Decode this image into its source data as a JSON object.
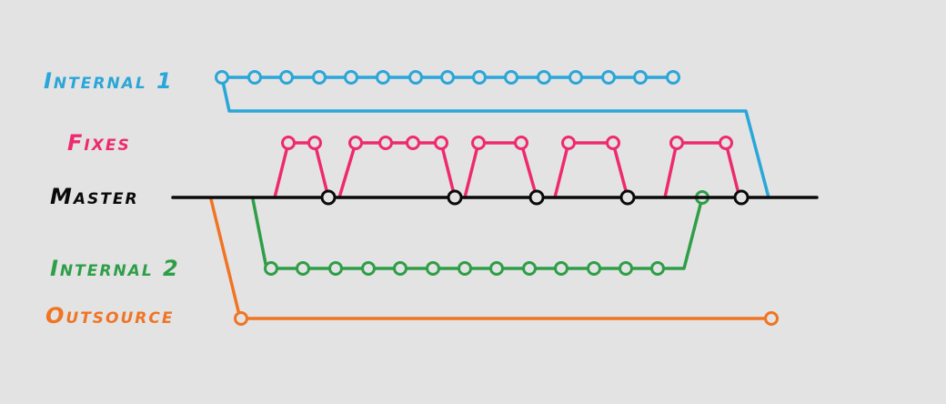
{
  "branches": {
    "internal1": {
      "label": "Internal 1",
      "color": "#2aa6d8",
      "commit_count": 15
    },
    "fixes": {
      "label": "Fixes",
      "color": "#ee2a6e",
      "commit_count": 11
    },
    "master": {
      "label": "Master",
      "color": "#0a0a0a",
      "commit_count": 6
    },
    "internal2": {
      "label": "Internal 2",
      "color": "#2e9e47",
      "commit_count": 14
    },
    "outsource": {
      "label": "Outsource",
      "color": "#f07423",
      "commit_count": 2
    }
  }
}
